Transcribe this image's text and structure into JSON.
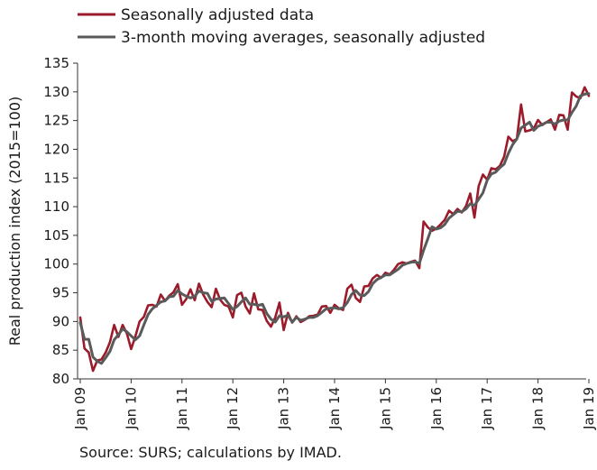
{
  "chart_data": {
    "type": "line",
    "ylabel": "Real production index (2015=100)",
    "ylim": [
      80,
      135
    ],
    "yticks": [
      80,
      85,
      90,
      95,
      100,
      105,
      110,
      115,
      120,
      125,
      130,
      135
    ],
    "xticks": [
      "Jan 09",
      "Jan 10",
      "Jan 11",
      "Jan 12",
      "Jan 13",
      "Jan 14",
      "Jan 15",
      "Jan 16",
      "Jan 17",
      "Jan 18",
      "Jan 19"
    ],
    "x_start": "2009-01",
    "grid": false,
    "legend_position": "top-left",
    "series": [
      {
        "name": "Seasonally adjusted data",
        "color": "#9b1b2a",
        "values": [
          90.7,
          85.3,
          84.6,
          81.4,
          83.2,
          83.4,
          84.6,
          86.4,
          89.4,
          87.3,
          89.4,
          87.9,
          85.2,
          87.4,
          90.0,
          90.8,
          92.8,
          92.9,
          92.6,
          94.7,
          93.6,
          94.5,
          95.1,
          96.5,
          92.9,
          93.9,
          95.6,
          93.7,
          96.6,
          94.7,
          93.4,
          92.5,
          95.7,
          93.8,
          92.9,
          92.6,
          90.7,
          94.6,
          95.0,
          92.6,
          91.4,
          94.9,
          92.1,
          92.0,
          90.1,
          89.1,
          90.7,
          93.3,
          88.5,
          91.5,
          89.8,
          90.9,
          89.9,
          90.3,
          90.9,
          91.0,
          91.2,
          92.6,
          92.7,
          91.5,
          92.9,
          92.3,
          92.0,
          95.7,
          96.4,
          94.1,
          93.4,
          96.1,
          96.2,
          97.5,
          98.1,
          97.6,
          98.5,
          98.2,
          99.0,
          100.0,
          100.3,
          100.1,
          100.4,
          100.6,
          99.3,
          107.4,
          106.4,
          105.8,
          106.2,
          106.9,
          107.7,
          109.3,
          108.7,
          109.6,
          109.0,
          110.1,
          112.3,
          108.1,
          113.6,
          115.6,
          114.7,
          116.7,
          116.5,
          117.1,
          118.7,
          122.2,
          121.4,
          121.8,
          127.8,
          123.1,
          123.3,
          123.6,
          125.1,
          124.2,
          124.7,
          125.2,
          123.4,
          126.0,
          125.9,
          123.4,
          129.9,
          129.2,
          128.9,
          130.8,
          129.3
        ]
      },
      {
        "name": "3-month moving averages, seasonally adjusted",
        "color": "#5a5a5a",
        "values": [
          89.8,
          86.9,
          86.9,
          83.8,
          83.1,
          82.7,
          83.7,
          84.8,
          86.8,
          87.7,
          88.7,
          88.2,
          87.5,
          86.8,
          87.5,
          89.4,
          91.2,
          92.2,
          92.8,
          93.4,
          93.6,
          94.3,
          94.4,
          95.4,
          94.8,
          94.4,
          94.1,
          94.4,
          95.3,
          95.0,
          94.9,
          93.5,
          93.9,
          94.0,
          94.1,
          93.1,
          92.1,
          92.6,
          93.4,
          94.1,
          93.0,
          93.0,
          92.8,
          93.0,
          91.4,
          90.4,
          89.9,
          91.0,
          90.8,
          91.1,
          89.9,
          90.7,
          90.2,
          90.4,
          90.7,
          90.7,
          91.0,
          91.6,
          92.2,
          92.3,
          92.4,
          92.2,
          92.4,
          93.3,
          94.7,
          95.4,
          94.6,
          94.5,
          95.2,
          96.6,
          97.3,
          97.7,
          98.1,
          98.1,
          98.6,
          99.1,
          99.8,
          100.1,
          100.3,
          100.4,
          100.1,
          102.4,
          104.4,
          106.5,
          106.1,
          106.3,
          106.9,
          108.0,
          108.6,
          109.2,
          109.1,
          109.6,
          110.5,
          110.2,
          111.3,
          112.4,
          114.6,
          115.7,
          116.0,
          116.8,
          117.4,
          119.3,
          120.8,
          121.8,
          123.7,
          124.2,
          124.7,
          123.3,
          124.0,
          124.3,
          124.7,
          124.7,
          124.4,
          124.9,
          125.1,
          125.1,
          126.4,
          127.5,
          129.3,
          129.6,
          129.7
        ]
      }
    ]
  },
  "source_text": "Source: SURS; calculations by IMAD."
}
